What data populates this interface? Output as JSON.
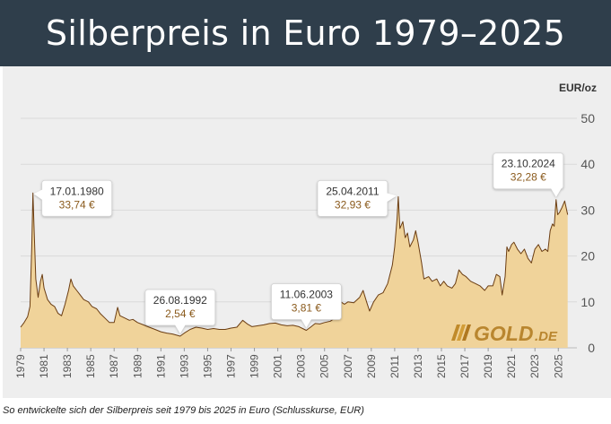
{
  "title": "Silberpreis in Euro 1979–2025",
  "caption": "So entwickelte sich der Silberpreis seit 1979 bis 2025 in Euro (Schlusskurse, EUR)",
  "logo": {
    "text": "GOLD",
    "suffix": ".DE",
    "icon": "gold-bars-logo-icon"
  },
  "colors": {
    "header_bg": "#2f3e4b",
    "panel_bg": "#eeeeee",
    "area_fill": "#f0d39a",
    "line": "#6b3d12",
    "value_text": "#8a5a1c",
    "tick_text": "#555555"
  },
  "chart_data": {
    "type": "area",
    "ylabel": "EUR/oz",
    "xlim": [
      1979,
      2025.9
    ],
    "ylim": [
      0,
      50
    ],
    "y_ticks": [
      0,
      10,
      20,
      30,
      40,
      50
    ],
    "x_ticks": [
      1979,
      1981,
      1983,
      1985,
      1987,
      1989,
      1991,
      1993,
      1995,
      1997,
      1999,
      2001,
      2003,
      2005,
      2007,
      2009,
      2011,
      2013,
      2015,
      2017,
      2019,
      2021,
      2023,
      2025
    ],
    "grid": "horizontal",
    "series": [
      {
        "points": [
          [
            1979.0,
            4.5
          ],
          [
            1979.3,
            5.5
          ],
          [
            1979.6,
            6.8
          ],
          [
            1979.8,
            9.0
          ],
          [
            1979.95,
            22.0
          ],
          [
            1980.05,
            33.74
          ],
          [
            1980.15,
            26.0
          ],
          [
            1980.3,
            15.0
          ],
          [
            1980.5,
            11.0
          ],
          [
            1980.7,
            14.5
          ],
          [
            1980.85,
            16.0
          ],
          [
            1981.0,
            13.0
          ],
          [
            1981.3,
            10.5
          ],
          [
            1981.6,
            9.5
          ],
          [
            1981.9,
            9.0
          ],
          [
            1982.2,
            7.5
          ],
          [
            1982.5,
            7.0
          ],
          [
            1982.8,
            9.5
          ],
          [
            1983.1,
            12.5
          ],
          [
            1983.3,
            15.0
          ],
          [
            1983.5,
            13.5
          ],
          [
            1983.8,
            12.5
          ],
          [
            1984.1,
            11.5
          ],
          [
            1984.4,
            10.5
          ],
          [
            1984.8,
            10.0
          ],
          [
            1985.1,
            9.0
          ],
          [
            1985.5,
            8.5
          ],
          [
            1985.8,
            7.5
          ],
          [
            1986.2,
            6.5
          ],
          [
            1986.6,
            5.5
          ],
          [
            1987.0,
            5.5
          ],
          [
            1987.3,
            8.8
          ],
          [
            1987.5,
            7.0
          ],
          [
            1987.9,
            6.5
          ],
          [
            1988.3,
            6.0
          ],
          [
            1988.6,
            6.2
          ],
          [
            1989.0,
            5.5
          ],
          [
            1989.5,
            5.0
          ],
          [
            1990.0,
            4.5
          ],
          [
            1990.5,
            4.0
          ],
          [
            1991.0,
            3.5
          ],
          [
            1991.5,
            3.2
          ],
          [
            1992.0,
            3.0
          ],
          [
            1992.65,
            2.54
          ],
          [
            1993.0,
            3.2
          ],
          [
            1993.5,
            4.0
          ],
          [
            1994.0,
            4.5
          ],
          [
            1994.5,
            4.3
          ],
          [
            1995.0,
            4.0
          ],
          [
            1995.5,
            4.2
          ],
          [
            1996.0,
            4.0
          ],
          [
            1996.5,
            4.0
          ],
          [
            1997.0,
            4.3
          ],
          [
            1997.5,
            4.5
          ],
          [
            1998.0,
            6.0
          ],
          [
            1998.4,
            5.2
          ],
          [
            1998.8,
            4.6
          ],
          [
            1999.3,
            4.8
          ],
          [
            1999.8,
            5.0
          ],
          [
            2000.3,
            5.3
          ],
          [
            2000.8,
            5.4
          ],
          [
            2001.3,
            5.0
          ],
          [
            2001.8,
            4.8
          ],
          [
            2002.3,
            4.9
          ],
          [
            2002.8,
            4.6
          ],
          [
            2003.2,
            4.1
          ],
          [
            2003.44,
            3.81
          ],
          [
            2003.8,
            4.5
          ],
          [
            2004.2,
            5.3
          ],
          [
            2004.6,
            5.2
          ],
          [
            2005.0,
            5.5
          ],
          [
            2005.5,
            5.8
          ],
          [
            2005.9,
            6.5
          ],
          [
            2006.2,
            8.5
          ],
          [
            2006.4,
            10.0
          ],
          [
            2006.7,
            9.5
          ],
          [
            2007.0,
            10.0
          ],
          [
            2007.5,
            9.8
          ],
          [
            2008.0,
            11.0
          ],
          [
            2008.3,
            12.5
          ],
          [
            2008.6,
            10.0
          ],
          [
            2008.85,
            8.0
          ],
          [
            2009.2,
            10.0
          ],
          [
            2009.6,
            11.5
          ],
          [
            2010.0,
            12.0
          ],
          [
            2010.4,
            14.0
          ],
          [
            2010.8,
            18.0
          ],
          [
            2011.0,
            22.0
          ],
          [
            2011.2,
            28.0
          ],
          [
            2011.31,
            32.93
          ],
          [
            2011.45,
            26.0
          ],
          [
            2011.7,
            27.5
          ],
          [
            2011.9,
            24.0
          ],
          [
            2012.1,
            25.0
          ],
          [
            2012.3,
            22.0
          ],
          [
            2012.6,
            23.5
          ],
          [
            2012.8,
            25.5
          ],
          [
            2013.0,
            23.0
          ],
          [
            2013.3,
            18.5
          ],
          [
            2013.5,
            15.0
          ],
          [
            2013.9,
            15.5
          ],
          [
            2014.2,
            14.5
          ],
          [
            2014.6,
            15.0
          ],
          [
            2014.9,
            13.5
          ],
          [
            2015.2,
            14.5
          ],
          [
            2015.5,
            13.5
          ],
          [
            2015.9,
            13.0
          ],
          [
            2016.2,
            14.0
          ],
          [
            2016.5,
            17.0
          ],
          [
            2016.8,
            16.0
          ],
          [
            2017.1,
            15.5
          ],
          [
            2017.5,
            14.5
          ],
          [
            2017.9,
            14.0
          ],
          [
            2018.3,
            13.5
          ],
          [
            2018.7,
            12.5
          ],
          [
            2019.0,
            13.5
          ],
          [
            2019.4,
            13.5
          ],
          [
            2019.7,
            16.0
          ],
          [
            2020.0,
            15.5
          ],
          [
            2020.2,
            11.5
          ],
          [
            2020.45,
            15.5
          ],
          [
            2020.6,
            22.0
          ],
          [
            2020.75,
            21.0
          ],
          [
            2021.0,
            22.5
          ],
          [
            2021.2,
            23.0
          ],
          [
            2021.5,
            21.5
          ],
          [
            2021.8,
            20.5
          ],
          [
            2022.1,
            21.5
          ],
          [
            2022.4,
            19.5
          ],
          [
            2022.7,
            18.5
          ],
          [
            2023.0,
            21.5
          ],
          [
            2023.3,
            22.5
          ],
          [
            2023.6,
            21.0
          ],
          [
            2023.9,
            21.5
          ],
          [
            2024.1,
            21.0
          ],
          [
            2024.3,
            25.5
          ],
          [
            2024.5,
            27.0
          ],
          [
            2024.65,
            26.5
          ],
          [
            2024.81,
            32.28
          ],
          [
            2024.95,
            29.0
          ],
          [
            2025.1,
            29.5
          ],
          [
            2025.3,
            30.5
          ],
          [
            2025.55,
            32.0
          ],
          [
            2025.8,
            29.0
          ]
        ]
      }
    ],
    "annotations": [
      {
        "date": "17.01.1980",
        "value_label": "33,74 €",
        "x": 1980.05,
        "y": 33.74,
        "pointer": "down"
      },
      {
        "date": "26.08.1992",
        "value_label": "2,54 €",
        "x": 1992.65,
        "y": 2.54,
        "pointer": "down"
      },
      {
        "date": "11.06.2003",
        "value_label": "3,81 €",
        "x": 2003.44,
        "y": 3.81,
        "pointer": "down"
      },
      {
        "date": "25.04.2011",
        "value_label": "32,93 €",
        "x": 2011.31,
        "y": 32.93,
        "pointer": "right"
      },
      {
        "date": "23.10.2024",
        "value_label": "32,28 €",
        "x": 2024.81,
        "y": 32.28,
        "pointer": "down"
      }
    ]
  }
}
